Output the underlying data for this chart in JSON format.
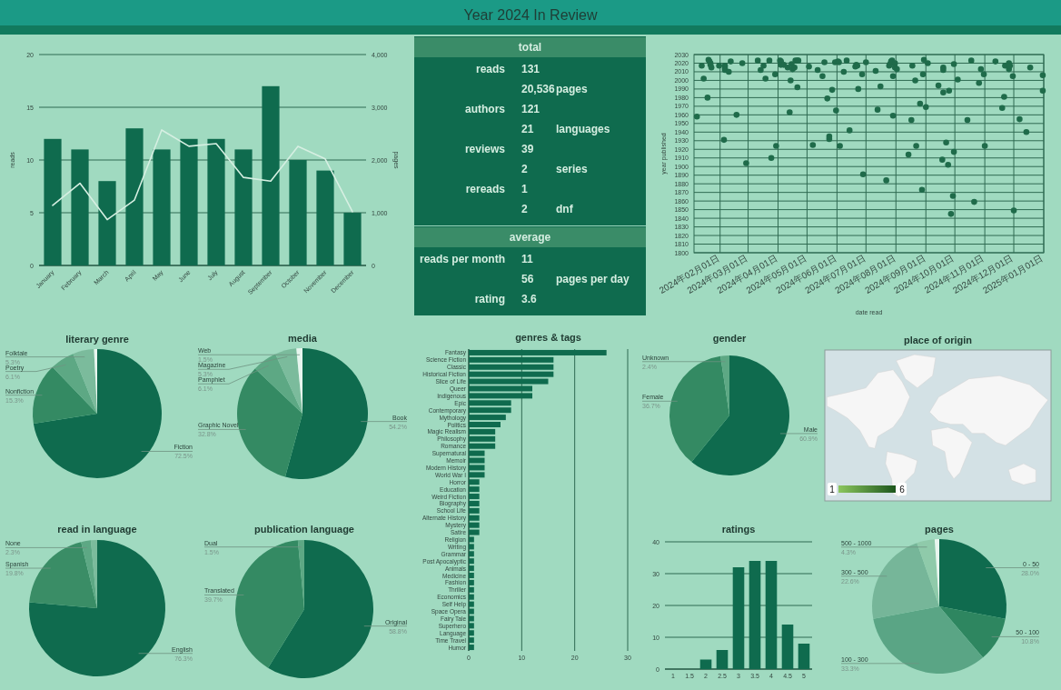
{
  "chart_data": [
    {
      "type": "other",
      "title": "Year 2024 In Review"
    },
    {
      "type": "bar",
      "categories": [
        "January",
        "February",
        "March",
        "April",
        "May",
        "June",
        "July",
        "August",
        "September",
        "October",
        "November",
        "December"
      ],
      "series": [
        {
          "type": "bar",
          "color": "#0f6b4e",
          "values": [
            12,
            11,
            8,
            13,
            11,
            12,
            12,
            11,
            17,
            10,
            9,
            5
          ]
        },
        {
          "type": "line",
          "axis": "y2",
          "color": "#d6efe2",
          "values": [
            1140,
            1560,
            870,
            1240,
            2570,
            2260,
            2310,
            1670,
            1600,
            2260,
            2020,
            1020
          ]
        }
      ],
      "ylabel": "reads",
      "y2label": "pages",
      "ylim": [
        0,
        20
      ],
      "yticks": [
        0,
        5,
        10,
        15,
        20
      ],
      "y2lim": [
        0,
        4000
      ],
      "y2ticks": [
        0,
        {
          "value": 1000,
          "label": "1,000"
        },
        {
          "value": 2000,
          "label": "2,000"
        },
        {
          "value": 3000,
          "label": "3,000"
        },
        {
          "value": 4000,
          "label": "4,000"
        }
      ],
      "grid": "y"
    },
    {
      "type": "other",
      "title": "total",
      "annotations": [
        "reads",
        "131",
        "20,536",
        "pages",
        "authors",
        "121",
        "21",
        "languages",
        "reviews",
        "39",
        "2",
        "series",
        "rereads",
        "1",
        "2",
        "dnf"
      ]
    },
    {
      "type": "other",
      "title": "average",
      "annotations": [
        "reads per month",
        "11",
        "56",
        "pages per day",
        "rating",
        "3.6"
      ]
    },
    {
      "type": "scatter",
      "color": "#1f6b4a",
      "marker": "circle",
      "xlabel": "date read",
      "ylabel": "year published",
      "x": [
        "2024-01-08",
        "2024-01-13",
        "2024-01-15",
        "2024-01-19",
        "2024-01-20",
        "2024-01-21",
        "2024-01-22",
        "2024-01-22",
        "2024-01-23",
        "2024-01-31",
        "2024-02-05",
        "2024-02-06",
        "2024-02-06",
        "2024-02-06",
        "2024-02-10",
        "2024-02-12",
        "2024-02-18",
        "2024-02-24",
        "2024-02-28",
        "2024-03-11",
        "2024-03-14",
        "2024-03-17",
        "2024-03-19",
        "2024-03-23",
        "2024-03-25",
        "2024-03-29",
        "2024-03-30",
        "2024-04-03",
        "2024-04-04",
        "2024-04-04",
        "2024-04-07",
        "2024-04-11",
        "2024-04-13",
        "2024-04-14",
        "2024-04-15",
        "2024-04-16",
        "2024-04-18",
        "2024-04-19",
        "2024-04-21",
        "2024-04-22",
        "2024-04-21",
        "2024-05-03",
        "2024-05-07",
        "2024-05-12",
        "2024-05-17",
        "2024-05-19",
        "2024-05-22",
        "2024-05-24",
        "2024-05-24",
        "2024-05-27",
        "2024-05-30",
        "2024-05-31",
        "2024-06-02",
        "2024-06-03",
        "2024-06-04",
        "2024-06-08",
        "2024-06-11",
        "2024-06-14",
        "2024-06-20",
        "2024-06-21",
        "2024-06-22",
        "2024-06-23",
        "2024-06-27",
        "2024-06-28",
        "2024-07-01",
        "2024-07-11",
        "2024-07-13",
        "2024-07-16",
        "2024-07-22",
        "2024-07-25",
        "2024-07-26",
        "2024-07-27",
        "2024-07-28",
        "2024-07-29",
        "2024-07-29",
        "2024-07-31",
        "2024-07-31",
        "2024-08-02",
        "2024-08-14",
        "2024-08-17",
        "2024-08-18",
        "2024-08-21",
        "2024-08-22",
        "2024-08-26",
        "2024-08-28",
        "2024-08-29",
        "2024-08-30",
        "2024-09-01",
        "2024-09-03",
        "2024-09-14",
        "2024-09-18",
        "2024-09-19",
        "2024-09-19",
        "2024-09-19",
        "2024-09-22",
        "2024-09-24",
        "2024-09-25",
        "2024-09-27",
        "2024-09-29",
        "2024-09-30",
        "2024-09-30",
        "2024-10-04",
        "2024-10-14",
        "2024-10-18",
        "2024-10-21",
        "2024-10-26",
        "2024-10-28",
        "2024-10-31",
        "2024-11-01",
        "2024-11-12",
        "2024-11-19",
        "2024-11-21",
        "2024-11-22",
        "2024-11-26",
        "2024-11-26",
        "2024-11-27",
        "2024-11-30",
        "2024-12-01",
        "2024-12-07",
        "2024-12-14",
        "2024-12-18",
        "2024-12-31",
        "2024-12-31"
      ],
      "values": [
        1958,
        2017,
        2002,
        1980,
        2024,
        2022,
        2020,
        2018,
        2015,
        2017,
        1931,
        2017,
        2014,
        2012,
        2010,
        2022,
        1960,
        2020,
        1904,
        2023,
        2012,
        2017,
        2002,
        2023,
        1910,
        2007,
        1924,
        2023,
        2022,
        2018,
        2018,
        2015,
        1963,
        2000,
        2019,
        2013,
        2015,
        2023,
        2023,
        2023,
        1992,
        2016,
        1925,
        2012,
        2005,
        2021,
        1979,
        1935,
        1932,
        1989,
        2021,
        1965,
        2022,
        2021,
        1924,
        2010,
        2023,
        1942,
        2016,
        2018,
        2017,
        1990,
        2007,
        1891,
        2021,
        2011,
        1966,
        1993,
        1884,
        2017,
        2019,
        2022,
        2023,
        2005,
        1959,
        2020,
        2015,
        2013,
        1914,
        1954,
        2017,
        2000,
        1924,
        1973,
        1873,
        2007,
        2024,
        1969,
        2020,
        1994,
        1908,
        2015,
        2012,
        1986,
        1928,
        1902,
        1988,
        1845,
        1866,
        1917,
        2019,
        2001,
        1954,
        2023,
        1859,
        1997,
        2013,
        2007,
        1924,
        2022,
        1968,
        1981,
        2017,
        2020,
        2013,
        2017,
        2005,
        1849,
        1955,
        1940,
        2015,
        2006,
        1988
      ],
      "xlim": [
        "2024-01-05",
        "2025-01-01"
      ],
      "xticks": [
        {
          "value": "2024-02-01",
          "label": "2024年02月01日"
        },
        {
          "value": "2024-03-01",
          "label": "2024年03月01日"
        },
        {
          "value": "2024-04-01",
          "label": "2024年04月01日"
        },
        {
          "value": "2024-05-01",
          "label": "2024年05月01日"
        },
        {
          "value": "2024-06-01",
          "label": "2024年06月01日"
        },
        {
          "value": "2024-07-01",
          "label": "2024年07月01日"
        },
        {
          "value": "2024-08-01",
          "label": "2024年08月01日"
        },
        {
          "value": "2024-09-01",
          "label": "2024年09月01日"
        },
        {
          "value": "2024-10-01",
          "label": "2024年10月01日"
        },
        {
          "value": "2024-11-01",
          "label": "2024年11月01日"
        },
        {
          "value": "2024-12-01",
          "label": "2024年12月01日"
        },
        {
          "value": "2025-01-01",
          "label": "2025年01月01日"
        }
      ],
      "ylim": [
        1800,
        2030
      ],
      "yticks": [
        1800,
        1810,
        1820,
        1830,
        1840,
        1850,
        1860,
        1870,
        1880,
        1890,
        1900,
        1910,
        1920,
        1930,
        1940,
        1950,
        1960,
        1970,
        1980,
        1990,
        2000,
        2010,
        2020,
        2030
      ],
      "grid": true
    },
    {
      "type": "pie",
      "title": "literary genre",
      "categories": [
        "Fiction",
        "Nonfiction",
        "Poetry",
        "Folktale",
        null
      ],
      "values": [
        72.5,
        15.3,
        6.1,
        5.3,
        0.8
      ],
      "value_labels": [
        "72.5%",
        "15.3%",
        "6.1%",
        "5.3%",
        null
      ],
      "colors": [
        "#0f6b4e",
        "#348a63",
        "#5da884",
        "#7bbb9c",
        "#e8f5ee"
      ]
    },
    {
      "type": "pie",
      "title": "media",
      "categories": [
        "Book",
        "Graphic Novel",
        "Pamphlet",
        "Magazine",
        "Web"
      ],
      "values": [
        54.2,
        32.8,
        6.1,
        5.3,
        1.5
      ],
      "value_labels": [
        "54.2%",
        "32.8%",
        "6.1%",
        "5.3%",
        "1.5%"
      ],
      "colors": [
        "#0f6b4e",
        "#348a63",
        "#5da884",
        "#7bbb9c",
        "#e8f5ee"
      ]
    },
    {
      "type": "bar",
      "orientation": "horizontal",
      "title": "genres & tags",
      "color": "#0f6b4e",
      "categories": [
        "Fantasy",
        "Science Fiction",
        "Classic",
        "Historical Fiction",
        "Slice of Life",
        "Queer",
        "Indigenous",
        "Epic",
        "Contemporary",
        "Mythology",
        "Politics",
        "Magic Realism",
        "Philosophy",
        "Romance",
        "Supernatural",
        "Memoir",
        "Modern History",
        "World War I",
        "Horror",
        "Education",
        "Weird Fiction",
        "Biography",
        "School Life",
        "Alternate History",
        "Mystery",
        "Satire",
        "Religion",
        "Writing",
        "Grammar",
        "Post Apocalyptic",
        "Animals",
        "Medicine",
        "Fashion",
        "Thriller",
        "Economics",
        "Self Help",
        "Space Opera",
        "Fairy Tale",
        "Superhero",
        "Language",
        "Time Travel",
        "Humor"
      ],
      "values": [
        26,
        16,
        16,
        16,
        15,
        12,
        12,
        8,
        8,
        7,
        6,
        5,
        5,
        5,
        3,
        3,
        3,
        3,
        2,
        2,
        2,
        2,
        2,
        2,
        2,
        2,
        1,
        1,
        1,
        1,
        1,
        1,
        1,
        1,
        1,
        1,
        1,
        1,
        1,
        1,
        1,
        1
      ],
      "xlim": [
        0,
        30
      ],
      "xticks": [
        0,
        10,
        20,
        30
      ],
      "grid": "x"
    },
    {
      "type": "pie",
      "title": "gender",
      "categories": [
        "Male",
        "Female",
        "Unknown"
      ],
      "values": [
        60.9,
        36.7,
        2.4
      ],
      "value_labels": [
        "60.9%",
        "36.7%",
        "2.4%"
      ],
      "colors": [
        "#0f6b4e",
        "#348a63",
        "#5da884"
      ]
    },
    {
      "type": "other",
      "title": "place of origin",
      "annotations": [
        "1",
        "6"
      ]
    },
    {
      "type": "pie",
      "title": "read in language",
      "categories": [
        "English",
        "Spanish",
        "None",
        null
      ],
      "values": [
        76.3,
        19.8,
        2.3,
        1.5
      ],
      "value_labels": [
        "76.3%",
        "19.8%",
        "2.3%",
        null
      ],
      "colors": [
        "#0f6b4e",
        "#3a8d66",
        "#5da884",
        "#7bbb9c"
      ]
    },
    {
      "type": "pie",
      "title": "publication language",
      "categories": [
        "Original",
        "Translated",
        "Dual"
      ],
      "values": [
        58.8,
        39.7,
        1.5
      ],
      "value_labels": [
        "58.8%",
        "39.7%",
        "1.5%"
      ],
      "colors": [
        "#0f6b4e",
        "#348a63",
        "#5da884"
      ]
    },
    {
      "type": "bar",
      "title": "ratings",
      "color": "#0f6b4e",
      "categories": [
        "1",
        "1.5",
        "2",
        "2.5",
        "3",
        "3.5",
        "4",
        "4.5",
        "5"
      ],
      "values": [
        0,
        0,
        3,
        6,
        32,
        34,
        34,
        14,
        8
      ],
      "ylim": [
        0,
        40
      ],
      "yticks": [
        0,
        10,
        20,
        30,
        40
      ],
      "grid": "y"
    },
    {
      "type": "pie",
      "title": "pages",
      "categories": [
        "0 - 50",
        "50 - 100",
        "100 - 300",
        "300 - 500",
        "500 - 1000",
        null
      ],
      "values": [
        28.0,
        10.8,
        33.3,
        22.6,
        4.3,
        1.1
      ],
      "value_labels": [
        "28.0%",
        "10.8%",
        "33.3%",
        "22.6%",
        "4.3%",
        null
      ],
      "colors": [
        "#0f6b4e",
        "#2e8660",
        "#5aa585",
        "#76b699",
        "#8fcaaa",
        "#e8f5ee"
      ]
    }
  ]
}
